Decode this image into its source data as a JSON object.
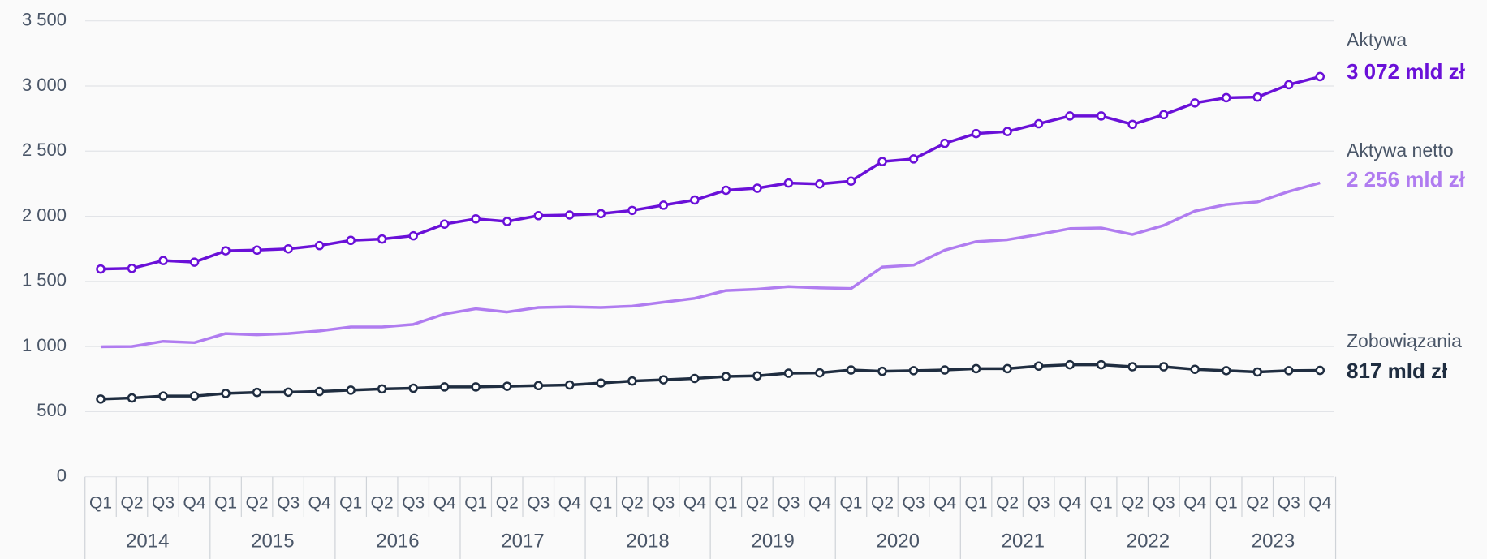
{
  "chart_data": {
    "type": "line",
    "categories": [
      "Q1",
      "Q2",
      "Q3",
      "Q4",
      "Q1",
      "Q2",
      "Q3",
      "Q4",
      "Q1",
      "Q2",
      "Q3",
      "Q4",
      "Q1",
      "Q2",
      "Q3",
      "Q4",
      "Q1",
      "Q2",
      "Q3",
      "Q4",
      "Q1",
      "Q2",
      "Q3",
      "Q4",
      "Q1",
      "Q2",
      "Q3",
      "Q4",
      "Q1",
      "Q2",
      "Q3",
      "Q4",
      "Q1",
      "Q2",
      "Q3",
      "Q4",
      "Q1",
      "Q2",
      "Q3",
      "Q4"
    ],
    "years": [
      "2014",
      "2015",
      "2016",
      "2017",
      "2018",
      "2019",
      "2020",
      "2021",
      "2022",
      "2023"
    ],
    "ylim": [
      0,
      3500
    ],
    "yticks": [
      0,
      500,
      {
        "value": 1000,
        "label": "1 000"
      },
      {
        "value": 1500,
        "label": "1 500"
      },
      {
        "value": 2000,
        "label": "2 000"
      },
      {
        "value": 2500,
        "label": "2 500"
      },
      {
        "value": 3000,
        "label": "3 000"
      },
      {
        "value": 3500,
        "label": "3 500"
      }
    ],
    "grid": true,
    "series": [
      {
        "name": "Aktywa",
        "color": "#6a10d8",
        "markers": true,
        "values": [
          1595,
          1600,
          1660,
          1648,
          1735,
          1740,
          1750,
          1775,
          1815,
          1825,
          1850,
          1940,
          1980,
          1960,
          2005,
          2010,
          2020,
          2045,
          2085,
          2125,
          2200,
          2215,
          2255,
          2248,
          2270,
          2420,
          2440,
          2560,
          2635,
          2650,
          2710,
          2770,
          2770,
          2705,
          2780,
          2870,
          2910,
          2915,
          3010,
          3072
        ],
        "value_labels": {
          "39": "3 072 mld zł"
        }
      },
      {
        "name": "Aktywa netto",
        "color": "#b07cf0",
        "markers": false,
        "values": [
          998,
          1000,
          1040,
          1030,
          1100,
          1090,
          1100,
          1120,
          1150,
          1150,
          1170,
          1250,
          1290,
          1265,
          1300,
          1305,
          1300,
          1310,
          1340,
          1370,
          1430,
          1440,
          1460,
          1450,
          1445,
          1610,
          1625,
          1740,
          1805,
          1820,
          1860,
          1905,
          1910,
          1860,
          1930,
          2040,
          2090,
          2110,
          2190,
          2256
        ],
        "value_labels": {
          "39": "2 256 mld zł"
        }
      },
      {
        "name": "Zobowiązania",
        "color": "#1f2d40",
        "markers": true,
        "values": [
          597,
          605,
          620,
          620,
          640,
          648,
          650,
          655,
          665,
          675,
          680,
          690,
          690,
          695,
          700,
          705,
          720,
          735,
          745,
          755,
          770,
          775,
          795,
          798,
          820,
          810,
          815,
          820,
          830,
          830,
          850,
          860,
          860,
          845,
          845,
          825,
          815,
          805,
          815,
          817
        ],
        "value_labels": {
          "39": "817 mld zł"
        }
      }
    ]
  }
}
